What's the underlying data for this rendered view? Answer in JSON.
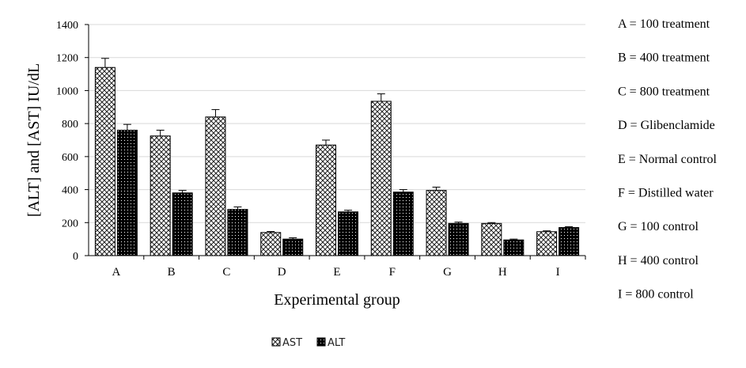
{
  "chart_data": {
    "type": "bar",
    "xlabel": "Experimental group",
    "ylabel": "[ALT] and [AST] IU/dL",
    "ylim": [
      0,
      1400
    ],
    "yticks": [
      0,
      200,
      400,
      600,
      800,
      1000,
      1200,
      1400
    ],
    "categories": [
      "A",
      "B",
      "C",
      "D",
      "E",
      "F",
      "G",
      "H",
      "I"
    ],
    "series": [
      {
        "name": "AST",
        "values": [
          1140,
          725,
          840,
          140,
          670,
          935,
          395,
          195,
          145
        ],
        "errors": [
          55,
          35,
          45,
          6,
          30,
          45,
          20,
          5,
          5
        ]
      },
      {
        "name": "ALT",
        "values": [
          760,
          380,
          280,
          100,
          265,
          385,
          195,
          95,
          170
        ],
        "errors": [
          35,
          15,
          15,
          8,
          10,
          15,
          8,
          5,
          5
        ]
      }
    ],
    "grid": true,
    "legend_position": "bottom",
    "annotations": [
      "A = 100 treatment",
      "B = 400 treatment",
      "C = 800 treatment",
      "D = Glibenclamide",
      "E = Normal control",
      "F = Distilled water",
      "G = 100 control",
      "H = 400 control",
      "I = 800 control"
    ]
  }
}
